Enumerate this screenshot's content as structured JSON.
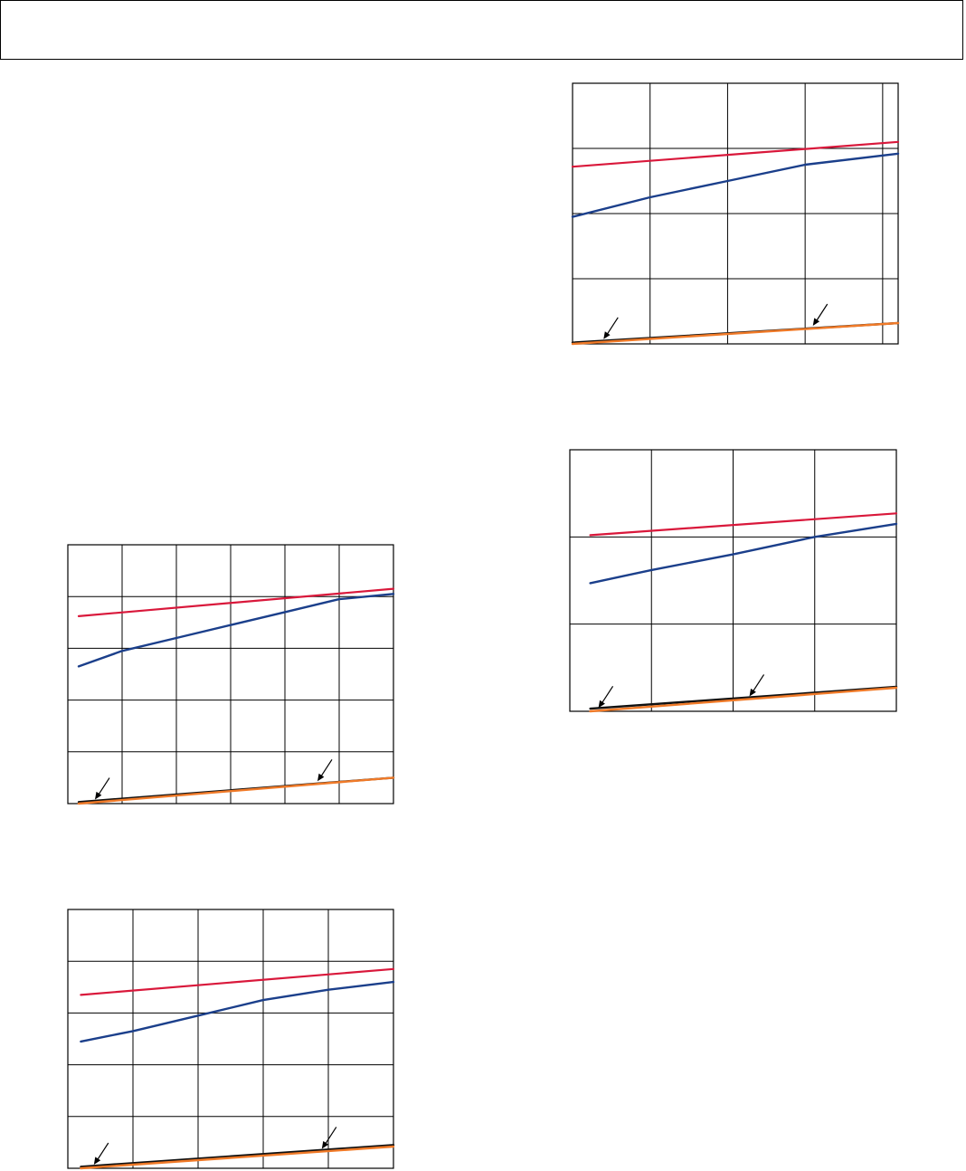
{
  "page": {
    "header_box": ""
  },
  "colors": {
    "series_red": "#d9183b",
    "series_blue": "#1b3f8b",
    "series_black": "#111111",
    "series_orange": "#f07a28"
  },
  "chart_data": [
    {
      "type": "line",
      "grid": true,
      "x_divisions": 6,
      "y_divisions": 5,
      "xlim": [
        0,
        6
      ],
      "ylim": [
        0,
        5
      ],
      "series": [
        {
          "color_key": "series_red",
          "x": [
            0.2,
            6.0
          ],
          "y": [
            3.62,
            4.15
          ]
        },
        {
          "color_key": "series_blue",
          "x": [
            0.2,
            1.0,
            2.0,
            3.0,
            4.0,
            5.0,
            6.0
          ],
          "y": [
            2.65,
            2.95,
            3.2,
            3.45,
            3.7,
            3.95,
            4.05
          ]
        },
        {
          "color_key": "series_black",
          "x": [
            0.2,
            6.0
          ],
          "y": [
            0.03,
            0.5
          ]
        },
        {
          "color_key": "series_orange",
          "x": [
            0.2,
            6.0
          ],
          "y": [
            0.0,
            0.5
          ]
        }
      ],
      "arrows_at_x": [
        0.5,
        4.6
      ]
    },
    {
      "type": "line",
      "grid": true,
      "x_divisions": 5,
      "y_divisions": 5,
      "xlim": [
        0,
        5
      ],
      "ylim": [
        0,
        5
      ],
      "series": [
        {
          "color_key": "series_red",
          "x": [
            0.2,
            5.0
          ],
          "y": [
            3.35,
            3.85
          ]
        },
        {
          "color_key": "series_blue",
          "x": [
            0.2,
            1.0,
            2.0,
            3.0,
            4.0,
            5.0
          ],
          "y": [
            2.45,
            2.65,
            2.95,
            3.25,
            3.45,
            3.6
          ]
        },
        {
          "color_key": "series_black",
          "x": [
            0.2,
            5.0
          ],
          "y": [
            0.03,
            0.45
          ]
        },
        {
          "color_key": "series_orange",
          "x": [
            0.2,
            5.0
          ],
          "y": [
            0.0,
            0.42
          ]
        }
      ],
      "arrows_at_x": [
        0.4,
        3.9
      ]
    },
    {
      "type": "line",
      "grid": true,
      "x_divisions": 4.2,
      "y_divisions": 4,
      "xlim": [
        0,
        4.2
      ],
      "ylim": [
        0,
        4
      ],
      "series": [
        {
          "color_key": "series_red",
          "x": [
            0.0,
            4.2
          ],
          "y": [
            2.72,
            3.1
          ]
        },
        {
          "color_key": "series_blue",
          "x": [
            0.0,
            1.0,
            2.0,
            3.0,
            4.2
          ],
          "y": [
            1.95,
            2.25,
            2.5,
            2.75,
            2.92
          ]
        },
        {
          "color_key": "series_black",
          "x": [
            0.0,
            4.2
          ],
          "y": [
            0.02,
            0.32
          ]
        },
        {
          "color_key": "series_orange",
          "x": [
            0.0,
            4.2
          ],
          "y": [
            0.0,
            0.32
          ]
        }
      ],
      "arrows_at_x": [
        0.4,
        3.1
      ]
    },
    {
      "type": "line",
      "grid": true,
      "x_divisions": 4,
      "y_divisions": 3,
      "xlim": [
        0,
        4
      ],
      "ylim": [
        0,
        3
      ],
      "series": [
        {
          "color_key": "series_red",
          "x": [
            0.25,
            4.0
          ],
          "y": [
            2.02,
            2.27
          ]
        },
        {
          "color_key": "series_blue",
          "x": [
            0.25,
            1.0,
            2.0,
            3.0,
            4.0
          ],
          "y": [
            1.47,
            1.62,
            1.8,
            2.0,
            2.15
          ]
        },
        {
          "color_key": "series_black",
          "x": [
            0.25,
            4.0
          ],
          "y": [
            0.03,
            0.28
          ]
        },
        {
          "color_key": "series_orange",
          "x": [
            0.25,
            4.0
          ],
          "y": [
            0.0,
            0.27
          ]
        }
      ],
      "arrows_at_x": [
        0.35,
        2.2
      ]
    }
  ]
}
